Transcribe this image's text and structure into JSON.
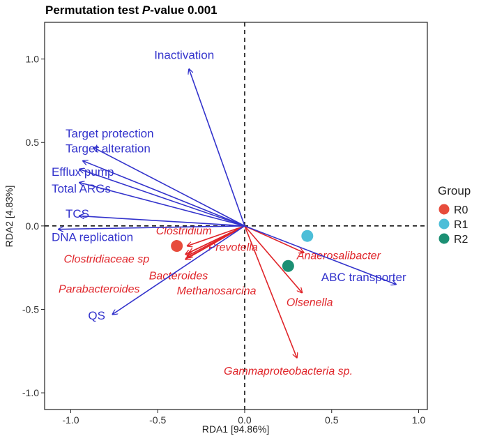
{
  "chart_data": {
    "type": "scatter",
    "title_prefix": "Permutation test ",
    "title_italic": "P",
    "title_suffix": "-value 0.001",
    "xlabel": "RDA1 [94.86%]",
    "ylabel": "RDA2 [4.83%]",
    "xlim": [
      -1.15,
      1.05
    ],
    "ylim": [
      -1.1,
      1.22
    ],
    "xticks": [
      -1.0,
      -0.5,
      0.0,
      0.5,
      1.0
    ],
    "yticks": [
      -1.0,
      -0.5,
      0.0,
      0.5,
      1.0
    ],
    "tick_labels_x": [
      "-1.0",
      "-0.5",
      "0.0",
      "0.5",
      "1.0"
    ],
    "tick_labels_y": [
      "-1.0",
      "-0.5",
      "0.0",
      "0.5",
      "1.0"
    ],
    "env_color": "#3333cc",
    "taxa_color": "#e0252a",
    "env_vectors": [
      {
        "name": "Inactivation",
        "x": -0.32,
        "y": 0.94,
        "lx": -0.52,
        "ly": 1.0
      },
      {
        "name": "Target protection",
        "x": -0.87,
        "y": 0.47,
        "lx": -1.03,
        "ly": 0.53
      },
      {
        "name": "Target alteration",
        "x": -0.93,
        "y": 0.39,
        "lx": -1.03,
        "ly": 0.44
      },
      {
        "name": "Efflux pump",
        "x": -0.95,
        "y": 0.34,
        "lx": -1.11,
        "ly": 0.3
      },
      {
        "name": "Total ARGs",
        "x": -0.95,
        "y": 0.26,
        "lx": -1.11,
        "ly": 0.2
      },
      {
        "name": "TCS",
        "x": -0.95,
        "y": 0.06,
        "lx": -1.03,
        "ly": 0.05
      },
      {
        "name": "DNA replication",
        "x": -1.07,
        "y": -0.02,
        "lx": -1.11,
        "ly": -0.09
      },
      {
        "name": "QS",
        "x": -0.76,
        "y": -0.53,
        "lx": -0.9,
        "ly": -0.56
      },
      {
        "name": "ABC transporter",
        "x": 0.87,
        "y": -0.35,
        "lx": 0.44,
        "ly": -0.33
      }
    ],
    "taxa_vectors": [
      {
        "name": "Clostridium",
        "x": -0.33,
        "y": -0.12,
        "lx": -0.51,
        "ly": -0.05
      },
      {
        "name": "Clostridiaceae sp",
        "x": -0.34,
        "y": -0.2,
        "lx": -1.04,
        "ly": -0.22
      },
      {
        "name": "Prevotella",
        "x": -0.34,
        "y": -0.17,
        "lx": -0.21,
        "ly": -0.15
      },
      {
        "name": "Bacteroides",
        "x": -0.33,
        "y": -0.19,
        "lx": -0.55,
        "ly": -0.32
      },
      {
        "name": "Parabacteroides",
        "x": -0.33,
        "y": -0.18,
        "lx": -1.07,
        "ly": -0.4
      },
      {
        "name": "Methanosarcina",
        "x": -0.32,
        "y": -0.16,
        "lx": -0.39,
        "ly": -0.41
      },
      {
        "name": "Anaerosalibacter",
        "x": 0.34,
        "y": -0.16,
        "lx": 0.3,
        "ly": -0.2
      },
      {
        "name": "Olsenella",
        "x": 0.33,
        "y": -0.4,
        "lx": 0.24,
        "ly": -0.48
      },
      {
        "name": "Gammaproteobacteria sp.",
        "x": 0.3,
        "y": -0.79,
        "lx": -0.12,
        "ly": -0.89
      }
    ],
    "samples": [
      {
        "group": "R0",
        "x": -0.39,
        "y": -0.12,
        "color": "#e74c3c"
      },
      {
        "group": "R1",
        "x": 0.36,
        "y": -0.06,
        "color": "#4dbed8"
      },
      {
        "group": "R2",
        "x": 0.25,
        "y": -0.24,
        "color": "#1b8f73"
      }
    ],
    "legend": {
      "title": "Group",
      "position": "right",
      "entries": [
        {
          "label": "R0",
          "color": "#e74c3c"
        },
        {
          "label": "R1",
          "color": "#4dbed8"
        },
        {
          "label": "R2",
          "color": "#1b8f73"
        }
      ]
    }
  }
}
